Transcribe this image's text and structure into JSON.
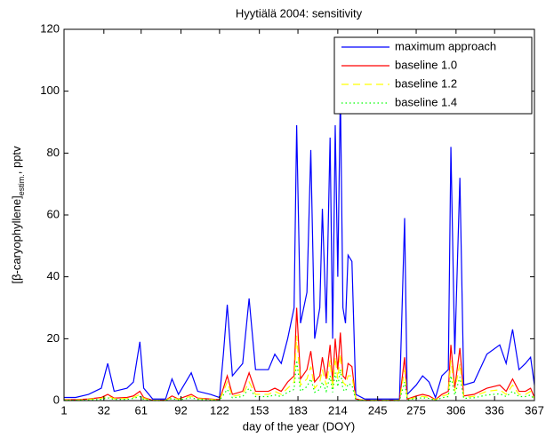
{
  "chart_data": {
    "type": "line",
    "title": "Hyytiälä 2004: sensitivity",
    "xlabel": "day of the year (DOY)",
    "ylabel": "[β-caryophyllene]",
    "ylabel_sub": "estim.",
    "ylabel_suffix": ", pptv",
    "xlim": [
      1,
      367
    ],
    "xticks": [
      1,
      32,
      61,
      92,
      122,
      153,
      183,
      214,
      245,
      275,
      306,
      336,
      367
    ],
    "ylim": [
      0,
      120
    ],
    "yticks": [
      0,
      20,
      40,
      60,
      80,
      100,
      120
    ],
    "grid": false,
    "legend": "upper right",
    "x": [
      1,
      10,
      20,
      30,
      35,
      40,
      50,
      55,
      60,
      63,
      70,
      80,
      85,
      90,
      100,
      105,
      115,
      122,
      125,
      128,
      132,
      140,
      145,
      150,
      160,
      165,
      170,
      175,
      180,
      182,
      185,
      190,
      193,
      196,
      200,
      202,
      205,
      208,
      210,
      212,
      214,
      216,
      218,
      220,
      222,
      225,
      228,
      235,
      245,
      255,
      262,
      266,
      268,
      275,
      280,
      285,
      290,
      295,
      300,
      302,
      305,
      309,
      312,
      320,
      330,
      340,
      345,
      350,
      355,
      360,
      364,
      367
    ],
    "series": [
      {
        "name": "maximum approach",
        "color": "#0000ff",
        "linestyle": "solid",
        "values": [
          1,
          1,
          2,
          4,
          12,
          3,
          4,
          6,
          19,
          4,
          0.5,
          0.5,
          7,
          2,
          9,
          3,
          2,
          1,
          15,
          31,
          8,
          12,
          33,
          10,
          10,
          15,
          12,
          20,
          30,
          89,
          25,
          35,
          81,
          20,
          30,
          62,
          25,
          85,
          20,
          89,
          40,
          100,
          30,
          25,
          47,
          45,
          2,
          0.5,
          0.5,
          0.5,
          0.5,
          59,
          2,
          5,
          8,
          6,
          1,
          8,
          10,
          82,
          15,
          72,
          5,
          6,
          15,
          18,
          12,
          23,
          10,
          12,
          14,
          5
        ]
      },
      {
        "name": "baseline 1.0",
        "color": "#ff0000",
        "linestyle": "solid",
        "values": [
          0.3,
          0.3,
          0.5,
          1,
          2,
          0.8,
          1,
          1.5,
          3,
          1,
          0.1,
          0.1,
          1.5,
          0.5,
          2,
          0.8,
          0.5,
          0.3,
          4,
          8,
          2,
          3,
          9,
          3,
          3,
          4,
          3,
          6,
          8,
          30,
          7,
          10,
          16,
          6,
          8,
          14,
          7,
          18,
          6,
          20,
          10,
          22,
          8,
          7,
          12,
          11,
          0.5,
          0.1,
          0.1,
          0.1,
          0.1,
          14,
          0.5,
          1.5,
          2,
          1.5,
          0.3,
          2,
          3,
          18,
          4,
          17,
          1.5,
          2,
          4,
          5,
          3,
          7,
          3,
          3,
          4,
          1
        ]
      },
      {
        "name": "baseline 1.2",
        "color": "#ffff00",
        "linestyle": "dashed",
        "values": [
          0.2,
          0.2,
          0.4,
          0.7,
          1.4,
          0.6,
          0.7,
          1,
          2,
          0.7,
          0.1,
          0.1,
          1,
          0.4,
          1.4,
          0.6,
          0.4,
          0.2,
          3,
          6,
          1.4,
          2,
          6,
          2,
          2,
          3,
          2,
          4,
          6,
          21,
          5,
          7,
          11,
          4,
          6,
          10,
          5,
          13,
          4,
          14,
          7,
          15,
          6,
          5,
          8,
          8,
          0.4,
          0.1,
          0.1,
          0.1,
          0.1,
          10,
          0.4,
          1,
          1.4,
          1,
          0.2,
          1.4,
          2,
          13,
          3,
          12,
          1,
          1.4,
          3,
          3.5,
          2,
          5,
          2,
          2,
          3,
          0.7
        ]
      },
      {
        "name": "baseline 1.4",
        "color": "#00ff00",
        "linestyle": "dotted",
        "values": [
          0.1,
          0.1,
          0.2,
          0.4,
          0.9,
          0.4,
          0.4,
          0.7,
          1.3,
          0.4,
          0,
          0,
          0.7,
          0.2,
          0.9,
          0.4,
          0.2,
          0.1,
          1.8,
          3.6,
          0.9,
          1.3,
          4,
          1.3,
          1.3,
          1.8,
          1.3,
          2.7,
          3.6,
          13,
          3,
          4.5,
          7,
          2.7,
          3.6,
          6,
          3,
          8,
          2.7,
          9,
          4.5,
          10,
          3.6,
          3,
          5.4,
          5,
          0.2,
          0,
          0,
          0,
          0,
          6,
          0.2,
          0.7,
          0.9,
          0.7,
          0.1,
          0.9,
          1.3,
          8,
          1.8,
          7.6,
          0.7,
          0.9,
          1.8,
          2.2,
          1.3,
          3,
          1.3,
          1.3,
          1.8,
          0.4
        ]
      }
    ]
  }
}
